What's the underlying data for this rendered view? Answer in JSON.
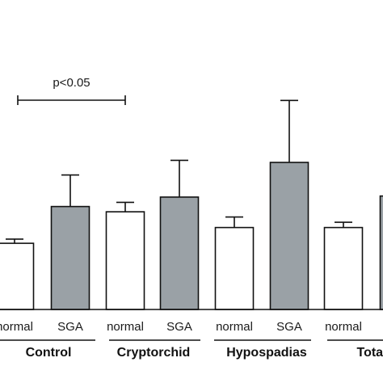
{
  "chart_data": {
    "type": "bar",
    "title": "",
    "xlabel": "",
    "ylabel": "",
    "ylim": [
      0,
      100
    ],
    "groups": [
      "Control",
      "Cryptorchid",
      "Hypospadias",
      "Total"
    ],
    "categories": [
      "normal",
      "SGA",
      "normal",
      "SGA",
      "normal",
      "SGA",
      "normal",
      "SGA"
    ],
    "values": [
      31.5,
      49.0,
      46.5,
      53.5,
      39.0,
      70.0,
      39.0,
      54.0
    ],
    "errors": [
      2.0,
      15.0,
      4.5,
      17.5,
      5.0,
      29.5,
      2.5,
      null
    ],
    "fill_by_category": {
      "normal": "#ffffff",
      "SGA": "#9aa1a6"
    },
    "annotation": {
      "text": "p<0.05",
      "from_index": 0,
      "to_index": 2
    },
    "grid": false,
    "legend": "none"
  }
}
